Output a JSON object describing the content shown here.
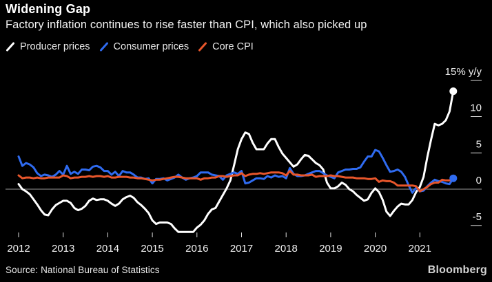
{
  "header": {
    "title": "Widening Gap",
    "subtitle": "Factory inflation continues to rise faster than CPI, which also picked up"
  },
  "footer": {
    "source": "Source: National Bureau of Statistics",
    "brand": "Bloomberg"
  },
  "colors": {
    "background": "#000000",
    "title_text": "#ffffff",
    "axis_text": "#f2f2f2",
    "zero_line": "#9a9a9a",
    "tick": "#e0e0e0",
    "producer": "#ffffff",
    "consumer": "#2f6bf0",
    "core": "#e8562b"
  },
  "chart_data": {
    "type": "line",
    "title": "Widening Gap",
    "subtitle": "Factory inflation continues to rise faster than CPI, which also picked up",
    "x_unit": "month",
    "x_start": "2012-01",
    "x_end": "2021-10",
    "x_tick_labels": [
      "2012",
      "2013",
      "2014",
      "2015",
      "2016",
      "2017",
      "2018",
      "2019",
      "2020",
      "2021"
    ],
    "y_axis": {
      "unit": "% y/y",
      "ylim": [
        -6.5,
        15.5
      ],
      "ticks": [
        {
          "value": 15,
          "label": "15% y/y"
        },
        {
          "value": 10,
          "label": "10"
        },
        {
          "value": 5,
          "label": "5"
        },
        {
          "value": 0,
          "label": "0"
        },
        {
          "value": -5,
          "label": "-5"
        }
      ]
    },
    "grid": "zero-line-only",
    "legend_position": "top-left",
    "series": [
      {
        "name": "Producer prices",
        "color": "#ffffff",
        "end_marker": true,
        "values": [
          0.7,
          0.0,
          -0.3,
          -0.7,
          -1.4,
          -2.1,
          -2.9,
          -3.5,
          -3.6,
          -2.8,
          -2.2,
          -1.9,
          -1.6,
          -1.6,
          -1.9,
          -2.6,
          -2.9,
          -2.7,
          -2.3,
          -1.6,
          -1.3,
          -1.5,
          -1.4,
          -1.4,
          -1.6,
          -2.0,
          -2.3,
          -2.0,
          -1.4,
          -1.1,
          -0.9,
          -1.2,
          -1.8,
          -2.2,
          -2.7,
          -3.3,
          -4.3,
          -4.8,
          -4.6,
          -4.6,
          -4.6,
          -4.8,
          -5.4,
          -5.9,
          -5.9,
          -5.9,
          -5.9,
          -5.9,
          -5.3,
          -4.9,
          -4.3,
          -3.4,
          -2.8,
          -2.6,
          -1.7,
          -0.8,
          0.1,
          1.2,
          3.3,
          5.5,
          6.9,
          7.8,
          7.6,
          6.4,
          5.5,
          5.5,
          5.5,
          6.3,
          6.9,
          6.9,
          5.8,
          4.9,
          4.3,
          3.7,
          3.1,
          3.4,
          4.1,
          4.7,
          4.6,
          4.1,
          3.6,
          3.3,
          2.7,
          0.9,
          0.1,
          0.1,
          0.4,
          0.9,
          0.6,
          0.0,
          -0.3,
          -0.8,
          -1.2,
          -1.6,
          -1.4,
          -0.5,
          0.1,
          -0.4,
          -1.5,
          -3.1,
          -3.7,
          -3.0,
          -2.4,
          -2.0,
          -2.1,
          -2.1,
          -1.5,
          -0.4,
          0.3,
          1.7,
          4.4,
          6.8,
          9.0,
          8.8,
          9.0,
          9.5,
          10.7,
          13.5
        ]
      },
      {
        "name": "Consumer prices",
        "color": "#2f6bf0",
        "end_marker": true,
        "values": [
          4.5,
          3.2,
          3.6,
          3.4,
          3.0,
          2.2,
          1.8,
          2.0,
          1.9,
          1.7,
          2.0,
          2.5,
          2.0,
          3.2,
          2.1,
          2.4,
          2.1,
          2.7,
          2.7,
          2.6,
          3.1,
          3.2,
          3.0,
          2.5,
          2.5,
          2.0,
          2.4,
          1.8,
          2.5,
          2.3,
          2.3,
          2.0,
          1.6,
          1.6,
          1.4,
          1.5,
          0.8,
          1.4,
          1.4,
          1.5,
          1.2,
          1.4,
          1.6,
          2.0,
          1.6,
          1.3,
          1.5,
          1.6,
          1.8,
          2.3,
          2.3,
          2.3,
          2.0,
          1.9,
          1.8,
          1.3,
          1.9,
          2.1,
          2.3,
          2.1,
          2.5,
          0.8,
          0.9,
          1.2,
          1.5,
          1.5,
          1.4,
          1.8,
          1.6,
          1.9,
          1.7,
          1.8,
          1.5,
          2.9,
          2.1,
          1.8,
          1.8,
          1.9,
          2.1,
          2.3,
          2.5,
          2.5,
          2.2,
          1.9,
          1.7,
          1.5,
          2.3,
          2.5,
          2.7,
          2.7,
          2.8,
          2.8,
          3.0,
          3.8,
          4.5,
          4.5,
          5.4,
          5.2,
          4.3,
          3.3,
          2.4,
          2.5,
          2.7,
          2.4,
          1.7,
          0.5,
          -0.5,
          0.2,
          -0.3,
          -0.2,
          0.4,
          0.9,
          1.3,
          1.1,
          1.0,
          0.8,
          0.7,
          1.5
        ]
      },
      {
        "name": "Core CPI",
        "color": "#e8562b",
        "end_marker": false,
        "values": [
          1.9,
          1.5,
          1.6,
          1.6,
          1.5,
          1.6,
          1.5,
          1.5,
          1.6,
          1.6,
          1.6,
          1.6,
          1.9,
          1.8,
          1.5,
          1.6,
          1.6,
          1.7,
          1.7,
          1.8,
          1.7,
          1.8,
          1.8,
          1.7,
          1.8,
          1.6,
          1.6,
          1.7,
          1.7,
          1.7,
          1.6,
          1.6,
          1.5,
          1.5,
          1.4,
          1.3,
          1.2,
          1.3,
          1.3,
          1.4,
          1.5,
          1.6,
          1.7,
          1.7,
          1.6,
          1.5,
          1.5,
          1.5,
          1.5,
          1.3,
          1.5,
          1.5,
          1.6,
          1.6,
          1.8,
          1.8,
          1.7,
          1.8,
          1.9,
          1.9,
          2.2,
          1.8,
          2.0,
          2.1,
          2.1,
          2.2,
          2.1,
          2.2,
          2.3,
          2.3,
          2.3,
          2.2,
          1.9,
          2.5,
          2.0,
          2.0,
          1.9,
          1.9,
          1.9,
          2.0,
          1.7,
          1.8,
          1.8,
          1.8,
          1.9,
          1.8,
          1.8,
          1.7,
          1.6,
          1.6,
          1.6,
          1.5,
          1.5,
          1.5,
          1.4,
          1.4,
          1.5,
          1.0,
          1.2,
          1.1,
          1.1,
          0.9,
          0.5,
          0.5,
          0.5,
          0.5,
          0.5,
          0.4,
          -0.3,
          0.0,
          0.3,
          0.7,
          0.9,
          0.9,
          1.3,
          1.2,
          1.2,
          1.3
        ]
      }
    ]
  }
}
